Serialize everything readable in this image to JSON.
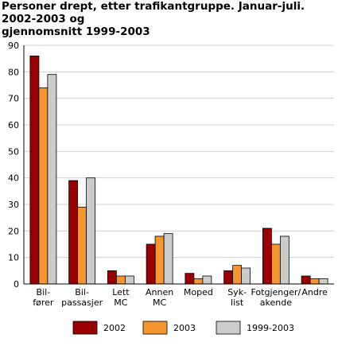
{
  "chart_data": {
    "type": "bar",
    "title_line1": "Personer drept, etter trafikantgruppe. Januar-juli. 2002-2003 og",
    "title_line2": "gjennomsnitt 1999-2003",
    "categories": [
      [
        "Bil-",
        "fører"
      ],
      [
        "Bil-",
        "passasjer"
      ],
      [
        "Lett",
        "MC"
      ],
      [
        "Annen",
        "MC"
      ],
      [
        "Moped"
      ],
      [
        "Syk-",
        "list"
      ],
      [
        "Fotgjenger/",
        "akende"
      ],
      [
        "Andre"
      ]
    ],
    "series": [
      {
        "name": "2002",
        "color": "#9b0000",
        "values": [
          86,
          39,
          5,
          15,
          4,
          5,
          21,
          3
        ]
      },
      {
        "name": "2003",
        "color": "#f5962f",
        "values": [
          74,
          29,
          3,
          18,
          2,
          7,
          15,
          2
        ]
      },
      {
        "name": "1999-2003",
        "color": "#cccccc",
        "values": [
          79,
          40,
          3,
          19,
          3,
          6,
          18,
          2
        ]
      }
    ],
    "ylim": [
      0,
      90
    ],
    "yticks": [
      0,
      10,
      20,
      30,
      40,
      50,
      60,
      70,
      80,
      90
    ],
    "grid": true,
    "legend_position": "bottom"
  }
}
